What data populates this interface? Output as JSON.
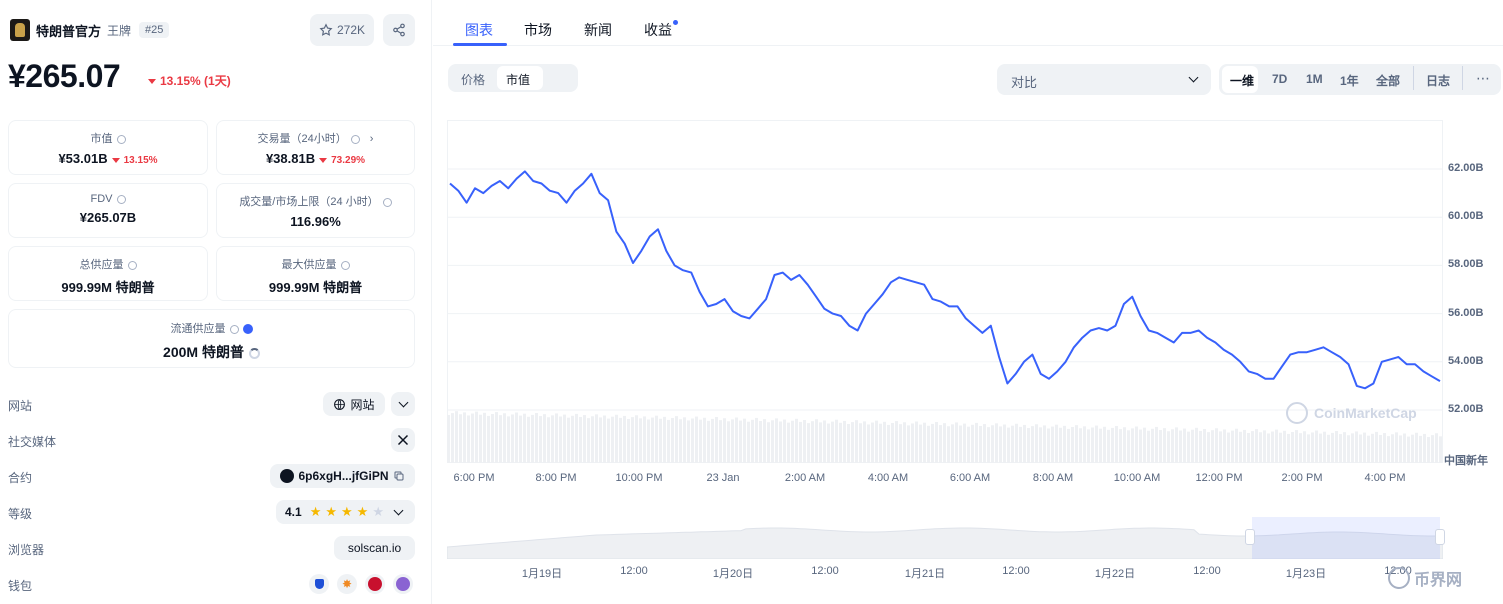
{
  "coin": {
    "name": "特朗普官方",
    "symbol": "王牌",
    "rank": "#25",
    "watchlist_count": "272K",
    "price": "¥265.07",
    "price_change": "13.15% (1天)"
  },
  "stats": {
    "market_cap": {
      "label": "市值",
      "value": "¥53.01B",
      "change": "13.15%"
    },
    "volume": {
      "label": "交易量（24小时）",
      "value": "¥38.81B",
      "change": "73.29%"
    },
    "fdv": {
      "label": "FDV",
      "value": "¥265.07B"
    },
    "vol_mcap": {
      "label": "成交量/市场上限（24 小时）",
      "value": "116.96%"
    },
    "total_supply": {
      "label": "总供应量",
      "value": "999.99M 特朗普"
    },
    "max_supply": {
      "label": "最大供应量",
      "value": "999.99M 特朗普"
    },
    "circulating": {
      "label": "流通供应量",
      "value": "200M 特朗普"
    }
  },
  "links": {
    "website": {
      "label": "网站",
      "value": "网站"
    },
    "social": {
      "label": "社交媒体",
      "icon": "x-icon"
    },
    "contract": {
      "label": "合约",
      "value": "6p6xgH...jfGiPN"
    },
    "rating": {
      "label": "等级",
      "value": "4.1",
      "stars": 4
    },
    "explorer": {
      "label": "浏览器",
      "value": "solscan.io"
    },
    "wallet": {
      "label": "钱包"
    }
  },
  "tabs": [
    "图表",
    "市场",
    "新闻",
    "收益"
  ],
  "chart_controls": {
    "toggle": [
      "价格",
      "市值"
    ],
    "compare_placeholder": "对比",
    "ranges": [
      "一维",
      "7D",
      "1M",
      "1年",
      "全部",
      "日志"
    ]
  },
  "colors": {
    "line": "#3861fb",
    "down": "#ea3943",
    "accent": "#3861fb"
  },
  "chart_data": {
    "type": "line",
    "title": "",
    "xlabel": "",
    "ylabel": "",
    "x_ticks": [
      "6:00 PM",
      "8:00 PM",
      "10:00 PM",
      "23 Jan",
      "2:00 AM",
      "4:00 AM",
      "6:00 AM",
      "8:00 AM",
      "10:00 AM",
      "12:00 PM",
      "2:00 PM",
      "4:00 PM"
    ],
    "y_ticks": [
      "62.00B",
      "60.00B",
      "58.00B",
      "56.00B",
      "54.00B",
      "52.00B"
    ],
    "ylim": [
      50.0,
      64.0
    ],
    "event_label": "中国新年",
    "series": [
      {
        "values": [
          61.4,
          61.1,
          60.6,
          61.2,
          61.0,
          61.3,
          61.5,
          61.2,
          61.6,
          61.9,
          61.5,
          61.4,
          61.1,
          61.0,
          60.6,
          61.1,
          61.4,
          61.8,
          61.0,
          60.7,
          59.4,
          58.9,
          58.1,
          58.6,
          59.2,
          59.5,
          58.6,
          58.0,
          57.8,
          57.7,
          56.9,
          56.3,
          56.4,
          56.6,
          56.1,
          55.9,
          55.8,
          56.2,
          56.6,
          57.6,
          57.7,
          57.4,
          57.6,
          57.2,
          56.7,
          56.2,
          56.0,
          55.9,
          55.5,
          55.3,
          56.0,
          56.4,
          56.8,
          57.3,
          57.5,
          57.4,
          57.3,
          57.2,
          56.6,
          56.5,
          56.3,
          56.3,
          55.8,
          55.5,
          55.2,
          55.5,
          54.2,
          53.1,
          53.5,
          54.0,
          54.3,
          53.5,
          53.3,
          53.6,
          54.0,
          54.6,
          55.0,
          55.3,
          55.4,
          55.3,
          55.5,
          56.4,
          56.7,
          55.9,
          55.3,
          55.2,
          55.0,
          54.8,
          55.2,
          55.2,
          55.3,
          55.0,
          54.8,
          54.5,
          54.3,
          54.0,
          53.6,
          53.5,
          53.3,
          53.3,
          53.8,
          54.3,
          54.4,
          54.4,
          54.5,
          54.6,
          54.4,
          54.2,
          53.9,
          53.0,
          52.9,
          53.1,
          54.0,
          54.1,
          54.2,
          53.9,
          53.9,
          53.6,
          53.4,
          53.2
        ]
      }
    ],
    "navigator_ticks": [
      "1月19日",
      "12:00",
      "1月20日",
      "12:00",
      "1月21日",
      "12:00",
      "1月22日",
      "12:00",
      "1月23日",
      "12:00"
    ]
  },
  "watermark": "CoinMarketCap",
  "brand": "币界网"
}
